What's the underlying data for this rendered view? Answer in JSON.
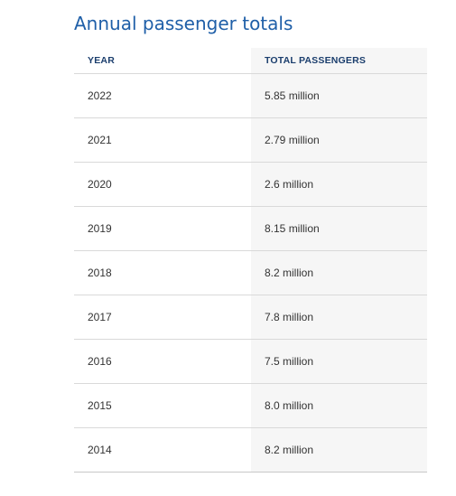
{
  "title": "Annual passenger totals",
  "table": {
    "headers": [
      "YEAR",
      "TOTAL PASSENGERS"
    ],
    "rows": [
      {
        "year": "2022",
        "total": "5.85 million"
      },
      {
        "year": "2021",
        "total": "2.79 million"
      },
      {
        "year": "2020",
        "total": "2.6 million"
      },
      {
        "year": "2019",
        "total": "8.15 million"
      },
      {
        "year": "2018",
        "total": "8.2 million"
      },
      {
        "year": "2017",
        "total": "7.8 million"
      },
      {
        "year": "2016",
        "total": "7.5 million"
      },
      {
        "year": "2015",
        "total": "8.0 million"
      },
      {
        "year": "2014",
        "total": "8.2 million"
      }
    ]
  },
  "colors": {
    "title": "#1f5fa8",
    "header_text": "#1b3e6d",
    "body_text": "#333333",
    "highlight_column": "#f6f6f6",
    "row_divider": "#d9d9d9"
  }
}
